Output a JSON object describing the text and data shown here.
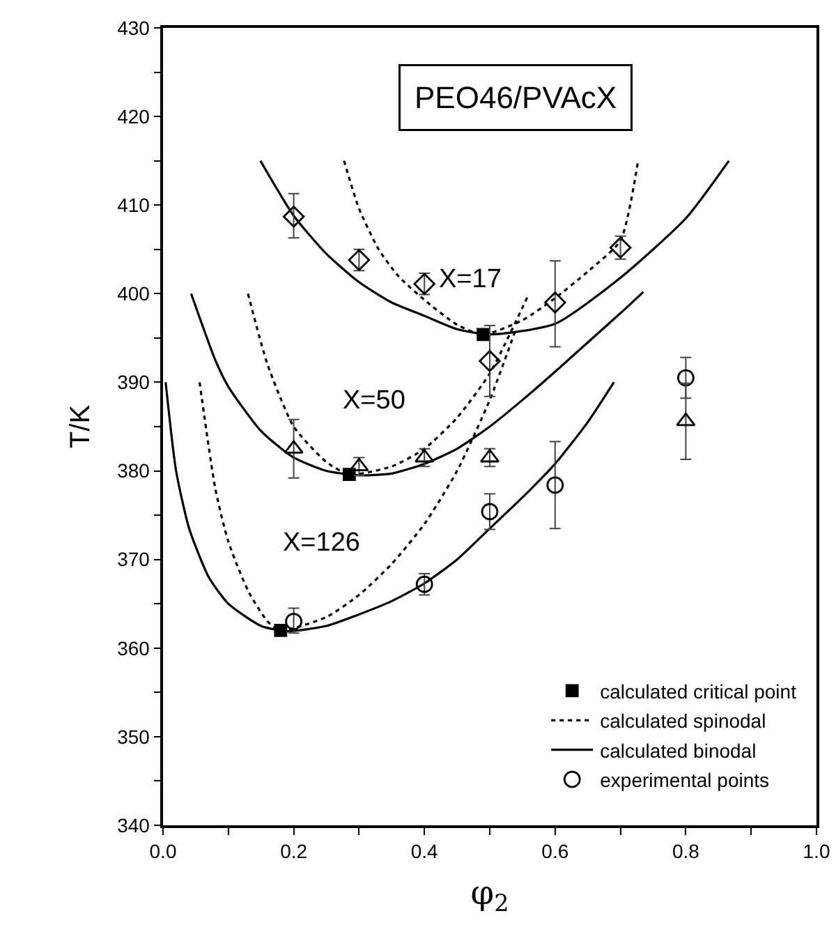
{
  "chart_data": {
    "type": "line",
    "title": "PEO46/PVAcX",
    "xlabel": "φ$_{2}$",
    "ylabel": "T/K",
    "xlim": [
      0,
      1
    ],
    "xticks": [
      {
        "value": 0,
        "label": "0.0"
      },
      {
        "value": 0.1,
        "label": null
      },
      {
        "value": 0.2,
        "label": "0.2"
      },
      {
        "value": 0.3,
        "label": null
      },
      {
        "value": 0.4,
        "label": "0.4"
      },
      {
        "value": 0.5,
        "label": null
      },
      {
        "value": 0.6,
        "label": "0.6"
      },
      {
        "value": 0.7,
        "label": null
      },
      {
        "value": 0.8,
        "label": "0.8"
      },
      {
        "value": 0.9,
        "label": null
      },
      {
        "value": 1,
        "label": "1.0"
      }
    ],
    "ylim": [
      340,
      430
    ],
    "yticks": [
      340,
      {
        "value": 345,
        "label": null
      },
      350,
      {
        "value": 355,
        "label": null
      },
      360,
      {
        "value": 365,
        "label": null
      },
      370,
      {
        "value": 375,
        "label": null
      },
      380,
      {
        "value": 385,
        "label": null
      },
      390,
      {
        "value": 395,
        "label": null
      },
      400,
      {
        "value": 405,
        "label": null
      },
      410,
      {
        "value": 415,
        "label": null
      },
      420,
      {
        "value": 425,
        "label": null
      },
      430
    ],
    "grid": false,
    "legend": "bottom right",
    "annotations": [
      "X=17",
      "X=50",
      "X=126"
    ],
    "series": [
      {
        "name": "calculated critical point",
        "type": "scatter",
        "marker": "square",
        "color": "#000000",
        "x": [
          0.18,
          0.285,
          0.49
        ],
        "values": [
          362,
          379.6,
          395.4
        ]
      },
      {
        "name": "calculated spinodal",
        "line_style": "dotted",
        "color": "#000000",
        "x": [
          0.277,
          0.3,
          0.33,
          0.36,
          0.4,
          0.45,
          0.49,
          0.55,
          0.6,
          0.65,
          0.7,
          0.727
        ],
        "values": [
          415,
          409.6,
          405,
          402,
          399.3,
          396.5,
          395.4,
          397,
          399.5,
          402.5,
          406,
          415
        ]
      },
      {
        "line_style": "dotted",
        "color": "#000000",
        "x": [
          0.13,
          0.16,
          0.2,
          0.25,
          0.285,
          0.35,
          0.4,
          0.45,
          0.5,
          0.56
        ],
        "values": [
          400,
          392,
          385,
          381,
          379.6,
          380.5,
          382.5,
          386,
          391,
          400
        ]
      },
      {
        "line_style": "dotted",
        "color": "#000000",
        "x": [
          0.056,
          0.08,
          0.1,
          0.13,
          0.16,
          0.18,
          0.25,
          0.3,
          0.35,
          0.4,
          0.45,
          0.5,
          0.54
        ],
        "values": [
          390,
          378,
          372,
          366.5,
          363,
          362,
          363.5,
          366,
          369.5,
          374,
          380,
          388,
          396
        ]
      },
      {
        "name": "calculated binodal",
        "line_style": "solid",
        "color": "#000000",
        "x": [
          0.149,
          0.2,
          0.25,
          0.3,
          0.35,
          0.4,
          0.45,
          0.5,
          0.6,
          0.7,
          0.8,
          0.866
        ],
        "values": [
          415,
          408.8,
          404.5,
          401.3,
          399,
          397.5,
          396,
          395.4,
          396.6,
          401.8,
          408.5,
          415
        ]
      },
      {
        "line_style": "solid",
        "color": "#000000",
        "x": [
          0.043,
          0.08,
          0.1,
          0.15,
          0.2,
          0.25,
          0.3,
          0.35,
          0.4,
          0.45,
          0.5,
          0.55,
          0.6,
          0.65,
          0.7,
          0.735
        ],
        "values": [
          400,
          392.5,
          389.5,
          384.5,
          381.5,
          380,
          379.5,
          379.7,
          380.8,
          382.5,
          385,
          388,
          391.2,
          394.5,
          397.8,
          400.2
        ]
      },
      {
        "line_style": "solid",
        "color": "#000000",
        "x": [
          0.004,
          0.02,
          0.04,
          0.07,
          0.1,
          0.15,
          0.19,
          0.25,
          0.3,
          0.35,
          0.4,
          0.45,
          0.5,
          0.55,
          0.6,
          0.65,
          0.69
        ],
        "values": [
          390,
          380,
          373.5,
          368,
          365,
          362.5,
          361.9,
          362.5,
          363.8,
          365.3,
          367.3,
          370,
          373.5,
          377,
          380.8,
          385.5,
          390
        ]
      },
      {
        "name": "experimental points",
        "type": "scatter",
        "marker": "circle",
        "color": "#000000",
        "x": [
          0.2,
          0.4,
          0.5,
          0.6,
          0.8
        ],
        "values": [
          363,
          367.2,
          375.4,
          378.4,
          390.5
        ],
        "errors": [
          [
            361.7,
            364.5
          ],
          [
            366,
            368.4
          ],
          [
            373.4,
            377.4
          ],
          [
            373.5,
            383.3
          ],
          [
            388.2,
            392.8
          ]
        ]
      },
      {
        "type": "scatter",
        "marker": "triangle",
        "color": "#000000",
        "x": [
          0.2,
          0.3,
          0.4,
          0.5,
          0.8
        ],
        "values": [
          382.5,
          380.5,
          381.5,
          381.5,
          385.6
        ],
        "errors": [
          [
            379.2,
            385.8
          ],
          [
            379.5,
            381.5
          ],
          [
            380.5,
            382.5
          ],
          [
            380.5,
            382.5
          ],
          4.3
        ]
      },
      {
        "type": "scatter",
        "marker": "diamond",
        "color": "#000000",
        "x": [
          0.2,
          0.3,
          0.4,
          0.5,
          0.6,
          0.7
        ],
        "values": [
          408.7,
          403.8,
          401.1,
          392.4,
          399,
          405.2
        ],
        "errors": [
          [
            406.3,
            411.3
          ],
          [
            402.6,
            405
          ],
          [
            399.9,
            402.3
          ],
          [
            388.4,
            396.4
          ],
          [
            394,
            403.7
          ],
          [
            403.9,
            406.5
          ]
        ]
      }
    ]
  }
}
